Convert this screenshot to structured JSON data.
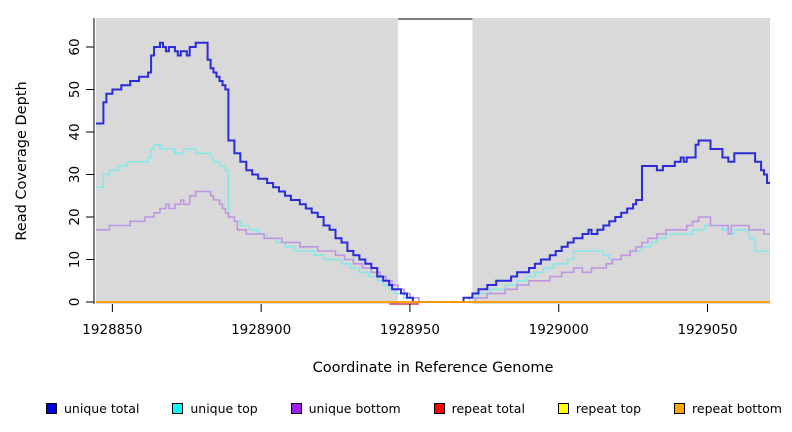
{
  "chart_data": {
    "type": "line",
    "subtype": "step",
    "title": "",
    "xlabel": "Coordinate in Reference Genome",
    "ylabel": "Read Coverage Depth",
    "xlim": [
      1928844.5,
      1929071
    ],
    "ylim": [
      0,
      66
    ],
    "x_ticks": [
      1928850,
      1928900,
      1928950,
      1929000,
      1929050
    ],
    "y_ticks": [
      0,
      10,
      20,
      30,
      40,
      50,
      60
    ],
    "grid": false,
    "panel_background": "#d9d9d9",
    "text_color": "#000000",
    "highlight_region": {
      "from": 1928946,
      "to": 1928971,
      "color": "#ffffff",
      "top_marker_color": "#7f7f7f"
    },
    "legend_position": "bottom",
    "legend": [
      {
        "label": "unique total",
        "color": "#0000e0"
      },
      {
        "label": "unique top",
        "color": "#00ffff"
      },
      {
        "label": "unique bottom",
        "color": "#a020f0"
      },
      {
        "label": "repeat total",
        "color": "#ff0000"
      },
      {
        "label": "repeat top",
        "color": "#ffff00"
      },
      {
        "label": "repeat bottom",
        "color": "#ffa500"
      }
    ],
    "series": [
      {
        "name": "unique top",
        "color": "#84e8e8",
        "width": 1.6,
        "extend": true,
        "points": [
          [
            1928844.5,
            27
          ],
          [
            1928847,
            30
          ],
          [
            1928849,
            31
          ],
          [
            1928852,
            32
          ],
          [
            1928855,
            33
          ],
          [
            1928862,
            34
          ],
          [
            1928863,
            36
          ],
          [
            1928864,
            37
          ],
          [
            1928866,
            36
          ],
          [
            1928871,
            35
          ],
          [
            1928874,
            36
          ],
          [
            1928878,
            35
          ],
          [
            1928883,
            34
          ],
          [
            1928884,
            33
          ],
          [
            1928886,
            32
          ],
          [
            1928888,
            31
          ],
          [
            1928889,
            20
          ],
          [
            1928891,
            19
          ],
          [
            1928893,
            18
          ],
          [
            1928896,
            17
          ],
          [
            1928899,
            16
          ],
          [
            1928902,
            15
          ],
          [
            1928905,
            14
          ],
          [
            1928908,
            13
          ],
          [
            1928911,
            12
          ],
          [
            1928918,
            11
          ],
          [
            1928921,
            10
          ],
          [
            1928927,
            9
          ],
          [
            1928930,
            8
          ],
          [
            1928933,
            7
          ],
          [
            1928936,
            6
          ],
          [
            1928939,
            5
          ],
          [
            1928941,
            4
          ],
          [
            1928943,
            3
          ],
          [
            1928945,
            2
          ],
          [
            1928948,
            1
          ],
          [
            1928951,
            0
          ],
          [
            1928970,
            1
          ],
          [
            1928973,
            2
          ],
          [
            1928977,
            3
          ],
          [
            1928982,
            4
          ],
          [
            1928986,
            5
          ],
          [
            1928989,
            6
          ],
          [
            1928992,
            7
          ],
          [
            1928995,
            8
          ],
          [
            1928998,
            9
          ],
          [
            1929003,
            10
          ],
          [
            1929005,
            12
          ],
          [
            1929013,
            12
          ],
          [
            1929015,
            11
          ],
          [
            1929017,
            10
          ],
          [
            1929021,
            11
          ],
          [
            1929024,
            12
          ],
          [
            1929028,
            13
          ],
          [
            1929031,
            14
          ],
          [
            1929033,
            15
          ],
          [
            1929036,
            16
          ],
          [
            1929044,
            16
          ],
          [
            1929045,
            17
          ],
          [
            1929049,
            18
          ],
          [
            1929055,
            17
          ],
          [
            1929057,
            16
          ],
          [
            1929059,
            17
          ],
          [
            1929064,
            15
          ],
          [
            1929066,
            12
          ]
        ]
      },
      {
        "name": "unique bottom",
        "color": "#bf95e3",
        "width": 1.6,
        "extend": true,
        "points": [
          [
            1928844.5,
            17
          ],
          [
            1928849,
            18
          ],
          [
            1928856,
            19
          ],
          [
            1928861,
            20
          ],
          [
            1928864,
            21
          ],
          [
            1928866,
            22
          ],
          [
            1928868,
            23
          ],
          [
            1928869,
            22
          ],
          [
            1928871,
            23
          ],
          [
            1928873,
            24
          ],
          [
            1928874,
            23
          ],
          [
            1928876,
            25
          ],
          [
            1928878,
            26
          ],
          [
            1928881,
            26
          ],
          [
            1928883,
            25
          ],
          [
            1928884,
            24
          ],
          [
            1928886,
            23
          ],
          [
            1928887,
            22
          ],
          [
            1928888,
            21
          ],
          [
            1928889,
            20
          ],
          [
            1928891,
            19
          ],
          [
            1928892,
            17
          ],
          [
            1928895,
            16
          ],
          [
            1928901,
            15
          ],
          [
            1928907,
            14
          ],
          [
            1928913,
            13
          ],
          [
            1928919,
            12
          ],
          [
            1928925,
            11
          ],
          [
            1928928,
            10
          ],
          [
            1928931,
            9
          ],
          [
            1928934,
            8
          ],
          [
            1928937,
            7
          ],
          [
            1928940,
            6
          ],
          [
            1928942,
            5
          ],
          [
            1928944,
            4
          ],
          [
            1928946,
            3
          ],
          [
            1928948,
            2
          ],
          [
            1928950,
            1
          ],
          [
            1928953,
            0
          ],
          [
            1928972,
            1
          ],
          [
            1928976,
            2
          ],
          [
            1928982,
            3
          ],
          [
            1928986,
            4
          ],
          [
            1928990,
            5
          ],
          [
            1928997,
            6
          ],
          [
            1929001,
            7
          ],
          [
            1929005,
            8
          ],
          [
            1929008,
            7
          ],
          [
            1929011,
            8
          ],
          [
            1929016,
            9
          ],
          [
            1929018,
            10
          ],
          [
            1929021,
            11
          ],
          [
            1929024,
            12
          ],
          [
            1929026,
            13
          ],
          [
            1929028,
            14
          ],
          [
            1929030,
            15
          ],
          [
            1929033,
            16
          ],
          [
            1929036,
            17
          ],
          [
            1929043,
            18
          ],
          [
            1929045,
            19
          ],
          [
            1929047,
            20
          ],
          [
            1929051,
            18
          ],
          [
            1929057,
            16
          ],
          [
            1929058,
            18
          ],
          [
            1929064,
            17
          ],
          [
            1929069,
            16
          ]
        ]
      },
      {
        "name": "unique total",
        "color": "#2b2bd9",
        "width": 2,
        "extend": true,
        "points": [
          [
            1928844.5,
            42
          ],
          [
            1928847,
            47
          ],
          [
            1928848,
            49
          ],
          [
            1928850,
            50
          ],
          [
            1928853,
            51
          ],
          [
            1928856,
            52
          ],
          [
            1928859,
            53
          ],
          [
            1928862,
            54
          ],
          [
            1928863,
            58
          ],
          [
            1928864,
            60
          ],
          [
            1928866,
            61
          ],
          [
            1928867,
            60
          ],
          [
            1928868,
            59
          ],
          [
            1928869,
            60
          ],
          [
            1928871,
            59
          ],
          [
            1928872,
            58
          ],
          [
            1928873,
            59
          ],
          [
            1928875,
            58
          ],
          [
            1928876,
            60
          ],
          [
            1928878,
            61
          ],
          [
            1928881,
            61
          ],
          [
            1928882,
            57
          ],
          [
            1928883,
            55
          ],
          [
            1928884,
            54
          ],
          [
            1928885,
            53
          ],
          [
            1928886,
            52
          ],
          [
            1928887,
            51
          ],
          [
            1928888,
            50
          ],
          [
            1928889,
            38
          ],
          [
            1928891,
            35
          ],
          [
            1928893,
            33
          ],
          [
            1928895,
            31
          ],
          [
            1928897,
            30
          ],
          [
            1928899,
            29
          ],
          [
            1928902,
            28
          ],
          [
            1928904,
            27
          ],
          [
            1928906,
            26
          ],
          [
            1928908,
            25
          ],
          [
            1928910,
            24
          ],
          [
            1928913,
            23
          ],
          [
            1928915,
            22
          ],
          [
            1928917,
            21
          ],
          [
            1928919,
            20
          ],
          [
            1928921,
            18
          ],
          [
            1928923,
            17
          ],
          [
            1928925,
            15
          ],
          [
            1928927,
            14
          ],
          [
            1928929,
            12
          ],
          [
            1928931,
            11
          ],
          [
            1928933,
            10
          ],
          [
            1928935,
            9
          ],
          [
            1928937,
            8
          ],
          [
            1928939,
            6
          ],
          [
            1928941,
            5
          ],
          [
            1928943,
            4
          ],
          [
            1928944,
            3
          ],
          [
            1928947,
            2
          ],
          [
            1928949,
            1
          ],
          [
            1928951,
            0
          ],
          [
            1928968,
            1
          ],
          [
            1928971,
            2
          ],
          [
            1928973,
            3
          ],
          [
            1928976,
            4
          ],
          [
            1928979,
            5
          ],
          [
            1928982,
            5
          ],
          [
            1928984,
            6
          ],
          [
            1928986,
            7
          ],
          [
            1928988,
            7
          ],
          [
            1928990,
            8
          ],
          [
            1928992,
            9
          ],
          [
            1928994,
            10
          ],
          [
            1928997,
            11
          ],
          [
            1928999,
            12
          ],
          [
            1929001,
            13
          ],
          [
            1929003,
            14
          ],
          [
            1929005,
            15
          ],
          [
            1929008,
            16
          ],
          [
            1929010,
            17
          ],
          [
            1929011,
            16
          ],
          [
            1929013,
            17
          ],
          [
            1929015,
            18
          ],
          [
            1929017,
            19
          ],
          [
            1929019,
            20
          ],
          [
            1929021,
            21
          ],
          [
            1929023,
            22
          ],
          [
            1929025,
            23
          ],
          [
            1929026,
            24
          ],
          [
            1929028,
            32
          ],
          [
            1929031,
            32
          ],
          [
            1929033,
            31
          ],
          [
            1929035,
            32
          ],
          [
            1929039,
            33
          ],
          [
            1929041,
            34
          ],
          [
            1929042,
            33
          ],
          [
            1929043,
            34
          ],
          [
            1929046,
            37
          ],
          [
            1929047,
            38
          ],
          [
            1929051,
            36
          ],
          [
            1929055,
            34
          ],
          [
            1929057,
            33
          ],
          [
            1929059,
            35
          ],
          [
            1929066,
            33
          ],
          [
            1929068,
            31
          ],
          [
            1929069,
            30
          ],
          [
            1929070,
            28
          ]
        ]
      },
      {
        "name": "repeat total",
        "color": "#cc4450",
        "width": 1.4,
        "extend": false,
        "dy": 2,
        "points": [
          [
            1928943,
            0
          ],
          [
            1928953,
            0
          ]
        ]
      },
      {
        "name": "repeat top",
        "color": "#ffff00",
        "width": 1.4,
        "extend": true,
        "points": [
          [
            1928844.5,
            0
          ]
        ]
      },
      {
        "name": "repeat bottom",
        "color": "#ff9800",
        "width": 1.7,
        "extend": true,
        "points": [
          [
            1928844.5,
            0
          ]
        ]
      }
    ]
  }
}
